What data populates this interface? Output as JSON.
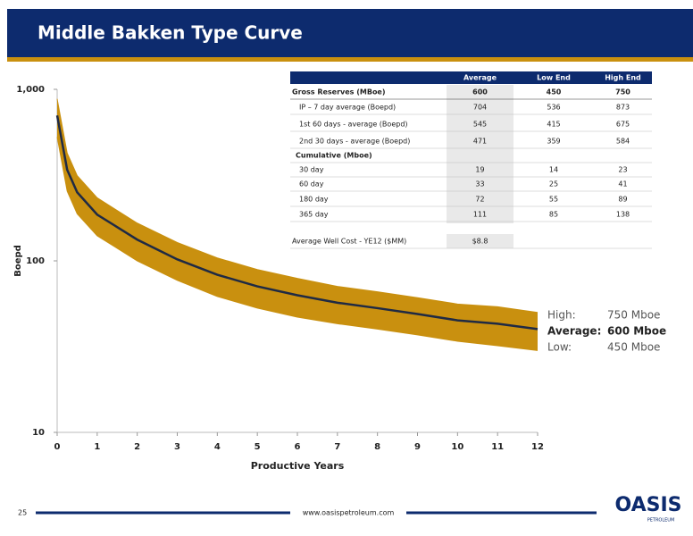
{
  "header": {
    "title": "Middle Bakken Type Curve"
  },
  "chart_data": {
    "type": "line",
    "log_y": true,
    "grid": false,
    "xlabel": "Productive Years",
    "ylabel": "Boepd",
    "x": [
      0,
      0.25,
      0.5,
      1,
      2,
      3,
      4,
      5,
      6,
      7,
      8,
      9,
      10,
      11,
      12
    ],
    "series": [
      {
        "color": "#c9900f",
        "values": [
          880,
          425,
          314,
          233,
          166,
          128,
          104,
          89,
          79,
          71,
          66,
          61,
          56,
          54,
          50
        ]
      },
      {
        "color": "#1f2a44",
        "values": [
          704,
          340,
          251,
          186,
          133,
          102,
          83,
          71,
          63,
          57,
          53,
          49,
          45,
          43,
          40
        ]
      },
      {
        "color": "#c9900f",
        "values": [
          528,
          255,
          188,
          140,
          100,
          77,
          62,
          53,
          47,
          43,
          40,
          37,
          34,
          32,
          30
        ]
      }
    ],
    "band_color": "#c9900f",
    "xlim": [
      0,
      12
    ],
    "xticks": [
      0,
      1,
      2,
      3,
      4,
      5,
      6,
      7,
      8,
      9,
      10,
      11,
      12
    ],
    "ylim": [
      10,
      1000
    ],
    "yticks": [
      10,
      100,
      {
        "value": 1000,
        "label": "1,000"
      }
    ],
    "annotations": [
      {
        "label": "High:",
        "value": "750 Mboe"
      },
      {
        "label": "Average:",
        "value": "600 Mboe"
      },
      {
        "label": "Low:",
        "value": "450 Mboe"
      }
    ]
  },
  "table": {
    "columns": [
      "Average",
      "Low End",
      "High End"
    ],
    "rows": [
      {
        "label": "Gross Reserves (MBoe)",
        "values": [
          600,
          450,
          750
        ]
      },
      {
        "label": "IP – 7 day average (Boepd)",
        "values": [
          704,
          536,
          873
        ]
      },
      {
        "label": "1st 60 days - average (Boepd)",
        "values": [
          545,
          415,
          675
        ]
      },
      {
        "label": "2nd 30 days - average (Boepd)",
        "values": [
          471,
          359,
          584
        ]
      },
      {
        "label": "Cumulative (Mboe)"
      },
      {
        "label": "30 day",
        "values": [
          19,
          14,
          23
        ]
      },
      {
        "label": "60 day",
        "values": [
          33,
          25,
          41
        ]
      },
      {
        "label": "180 day",
        "values": [
          72,
          55,
          89
        ]
      },
      {
        "label": "365 day",
        "values": [
          111,
          85,
          138
        ]
      },
      {
        "label": "Average Well Cost - YE12 ($MM)",
        "values": [
          "$8.8"
        ]
      }
    ]
  },
  "footer": {
    "page": "25",
    "url": "www.oasispetroleum.com",
    "logo": "OASIS",
    "logo_sub": "PETROLEUM"
  }
}
